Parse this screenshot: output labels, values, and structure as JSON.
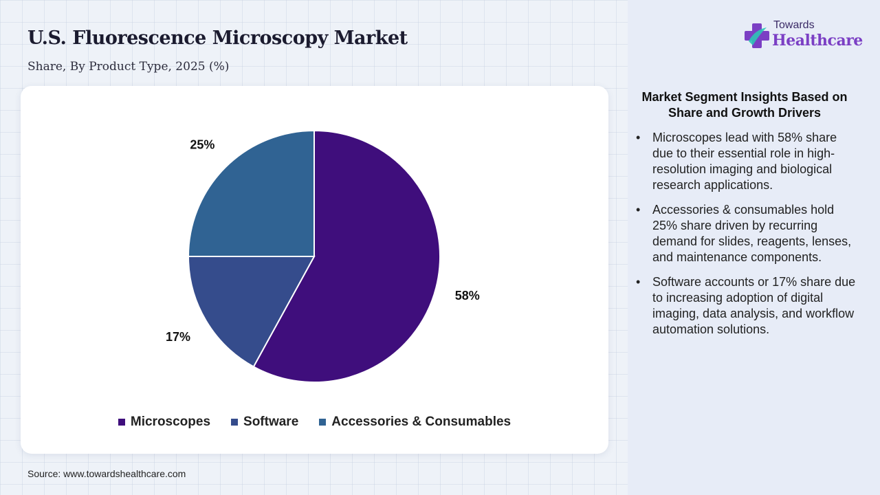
{
  "header": {
    "title": "U.S. Fluorescence Microscopy Market",
    "subtitle": "Share, By Product Type, 2025 (%)"
  },
  "logo": {
    "small": "Towards",
    "big": "Healthcare"
  },
  "chart_data": {
    "type": "pie",
    "slices": [
      {
        "name": "Microscopes",
        "value": 58,
        "label": "58%",
        "color": "#3f0e7c"
      },
      {
        "name": "Software",
        "value": 17,
        "label": "17%",
        "color": "#354c8c"
      },
      {
        "name": "Accessories & Consumables",
        "value": 25,
        "label": "25%",
        "color": "#306393"
      }
    ],
    "legend": [
      "Microscopes",
      "Software",
      "Accessories & Consumables"
    ],
    "legend_position": "bottom",
    "start_angle": "12 o'clock",
    "direction": "clockwise"
  },
  "insights": {
    "title": "Market Segment Insights Based on Share and Growth Drivers",
    "items": [
      "Microscopes lead with 58% share due to their essential role in high-resolution imaging and biological research applications.",
      "Accessories & consumables hold 25% share driven by recurring demand for slides, reagents, lenses, and maintenance components.",
      "Software accounts or 17% share due to increasing adoption of digital imaging, data analysis, and workflow automation solutions."
    ]
  },
  "source": "Source: www.towardshealthcare.com"
}
